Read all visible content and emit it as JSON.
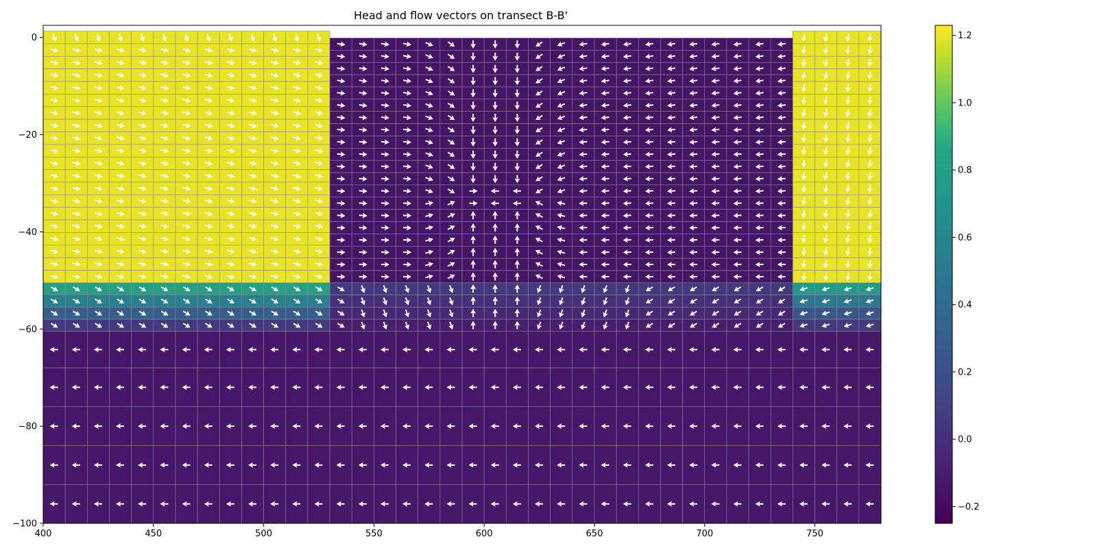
{
  "chart_data": {
    "type": "heatmap",
    "title": "Head and flow vectors on transect B-B'",
    "xlabel": "",
    "ylabel": "",
    "xlim": [
      400,
      780
    ],
    "ylim": [
      -100,
      2.5
    ],
    "x_ticks": [
      400,
      450,
      500,
      550,
      600,
      650,
      700,
      750
    ],
    "x_tick_labels": [
      "400",
      "450",
      "500",
      "550",
      "600",
      "650",
      "700",
      "750"
    ],
    "y_ticks": [
      0,
      -20,
      -40,
      -60,
      -80,
      -100
    ],
    "y_tick_labels": [
      "0",
      "−20",
      "−40",
      "−60",
      "−80",
      "−100"
    ],
    "colorbar": {
      "colormap": "viridis",
      "vmin": -0.25,
      "vmax": 1.23,
      "ticks": [
        -0.2,
        0.0,
        0.2,
        0.4,
        0.6,
        0.8,
        1.0,
        1.2
      ],
      "tick_labels": [
        "−0.2",
        "0.0",
        "0.2",
        "0.4",
        "0.6",
        "0.8",
        "1.0",
        "1.2"
      ]
    },
    "columns": {
      "x_start": 400,
      "x_end": 780,
      "count": 38,
      "high_head_left": [
        400,
        530
      ],
      "low_head_center": [
        530,
        740
      ],
      "high_head_right": [
        740,
        780
      ],
      "well_column_center": 605
    },
    "surface": {
      "left_top": 1.3,
      "center_top": -0.1,
      "right_top": 1.3
    },
    "layers": [
      {
        "top": "surface",
        "bottom": -50.5,
        "head_left": 1.2,
        "head_center": -0.15,
        "head_right": 1.2
      },
      {
        "top": -50.5,
        "bottom": -53.0,
        "head_left": 0.8,
        "head_center": 0.05,
        "head_right": 0.75
      },
      {
        "top": -53.0,
        "bottom": -55.5,
        "head_left": 0.55,
        "head_center": 0.0,
        "head_right": 0.5
      },
      {
        "top": -55.5,
        "bottom": -58.0,
        "head_left": 0.3,
        "head_center": -0.05,
        "head_right": 0.25
      },
      {
        "top": -58.0,
        "bottom": -60.5,
        "head_left": 0.05,
        "head_center": -0.1,
        "head_right": 0.05
      },
      {
        "top": -60.5,
        "bottom": -68.0,
        "head": -0.14
      },
      {
        "top": -68.0,
        "bottom": -76.0,
        "head": -0.14
      },
      {
        "top": -76.0,
        "bottom": -84.0,
        "head": -0.14
      },
      {
        "top": -84.0,
        "bottom": -92.0,
        "head": -0.14
      },
      {
        "top": -92.0,
        "bottom": -100.0,
        "head": -0.14
      }
    ],
    "vectors": "unit-length flow arrows at each cell center; pointing toward lower head (leftward in deep layers, converging on the column at x≈605 in the low-head zone)"
  }
}
